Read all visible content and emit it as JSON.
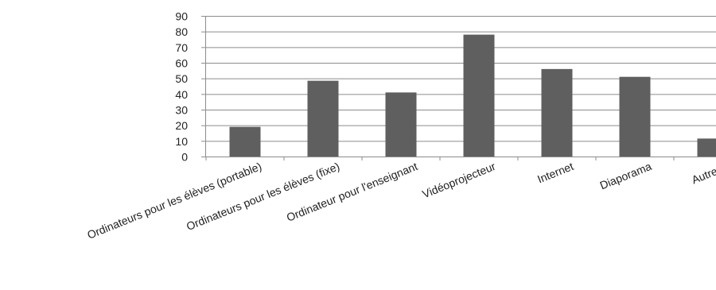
{
  "chart_data": {
    "type": "bar",
    "title": "",
    "xlabel": "",
    "ylabel": "",
    "categories": [
      "Ordinateurs pour les élèves (portable)",
      "Ordinateurs pour les élèves (fixe)",
      "Ordinateur pour l'enseignant",
      "Vidéoprojecteur",
      "Internet",
      "Diaporama",
      "Autre(s)"
    ],
    "values": [
      19,
      48.5,
      41,
      78,
      56,
      51,
      11.5
    ],
    "ylim": [
      0,
      90
    ],
    "yticks": [
      0,
      10,
      20,
      30,
      40,
      50,
      60,
      70,
      80,
      90
    ],
    "grid": true,
    "legend": "none",
    "bar_color": "#5f5f5f",
    "grid_color": "#8c8c8c"
  }
}
